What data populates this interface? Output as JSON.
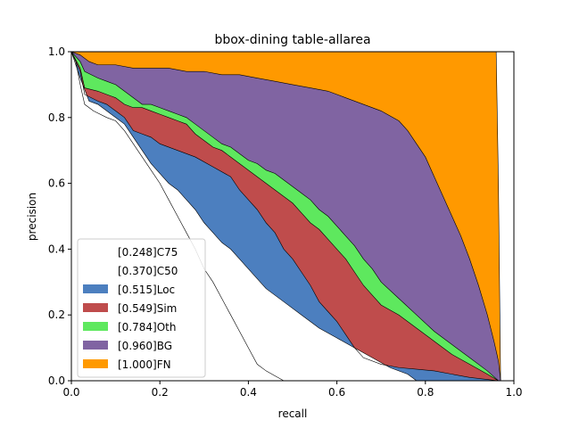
{
  "chart_data": {
    "type": "area",
    "title": "bbox-dining table-allarea",
    "xlabel": "recall",
    "ylabel": "precision",
    "xlim": [
      0,
      1
    ],
    "ylim": [
      0,
      1
    ],
    "x_ticks": [
      "0.0",
      "0.2",
      "0.4",
      "0.6",
      "0.8",
      "1.0"
    ],
    "y_ticks": [
      "0.0",
      "0.2",
      "0.4",
      "0.6",
      "0.8",
      "1.0"
    ],
    "grid": false,
    "legend_position": "lower-left",
    "series": [
      {
        "name": "[0.248]C75",
        "color": "#ffffff",
        "points": [
          [
            0,
            1.0
          ],
          [
            0.01,
            0.97
          ],
          [
            0.02,
            0.9
          ],
          [
            0.03,
            0.84
          ],
          [
            0.05,
            0.82
          ],
          [
            0.08,
            0.8
          ],
          [
            0.1,
            0.79
          ],
          [
            0.12,
            0.76
          ],
          [
            0.14,
            0.72
          ],
          [
            0.16,
            0.68
          ],
          [
            0.18,
            0.64
          ],
          [
            0.2,
            0.6
          ],
          [
            0.22,
            0.55
          ],
          [
            0.24,
            0.5
          ],
          [
            0.26,
            0.45
          ],
          [
            0.28,
            0.4
          ],
          [
            0.3,
            0.34
          ],
          [
            0.32,
            0.3
          ],
          [
            0.34,
            0.25
          ],
          [
            0.36,
            0.2
          ],
          [
            0.38,
            0.15
          ],
          [
            0.4,
            0.1
          ],
          [
            0.42,
            0.05
          ],
          [
            0.44,
            0.03
          ],
          [
            0.46,
            0.015
          ],
          [
            0.48,
            0.0
          ]
        ]
      },
      {
        "name": "[0.370]C50",
        "color": "#ffffff",
        "points": [
          [
            0,
            1.0
          ],
          [
            0.02,
            0.92
          ],
          [
            0.04,
            0.85
          ],
          [
            0.06,
            0.84
          ],
          [
            0.08,
            0.82
          ],
          [
            0.1,
            0.8
          ],
          [
            0.12,
            0.78
          ],
          [
            0.14,
            0.74
          ],
          [
            0.16,
            0.7
          ],
          [
            0.18,
            0.66
          ],
          [
            0.2,
            0.63
          ],
          [
            0.22,
            0.6
          ],
          [
            0.24,
            0.58
          ],
          [
            0.26,
            0.55
          ],
          [
            0.28,
            0.52
          ],
          [
            0.3,
            0.48
          ],
          [
            0.32,
            0.45
          ],
          [
            0.34,
            0.42
          ],
          [
            0.36,
            0.4
          ],
          [
            0.38,
            0.37
          ],
          [
            0.4,
            0.34
          ],
          [
            0.44,
            0.28
          ],
          [
            0.48,
            0.24
          ],
          [
            0.52,
            0.2
          ],
          [
            0.56,
            0.16
          ],
          [
            0.6,
            0.13
          ],
          [
            0.64,
            0.1
          ],
          [
            0.68,
            0.07
          ],
          [
            0.72,
            0.04
          ],
          [
            0.76,
            0.02
          ],
          [
            0.78,
            0.0
          ]
        ]
      },
      {
        "name": "[0.515]Loc",
        "color": "#4c7fbf",
        "points": [
          [
            0,
            1.0
          ],
          [
            0.02,
            0.94
          ],
          [
            0.03,
            0.87
          ],
          [
            0.06,
            0.85
          ],
          [
            0.08,
            0.84
          ],
          [
            0.1,
            0.82
          ],
          [
            0.12,
            0.8
          ],
          [
            0.14,
            0.76
          ],
          [
            0.16,
            0.75
          ],
          [
            0.18,
            0.74
          ],
          [
            0.2,
            0.72
          ],
          [
            0.24,
            0.7
          ],
          [
            0.28,
            0.68
          ],
          [
            0.32,
            0.65
          ],
          [
            0.36,
            0.62
          ],
          [
            0.38,
            0.58
          ],
          [
            0.4,
            0.55
          ],
          [
            0.42,
            0.52
          ],
          [
            0.44,
            0.48
          ],
          [
            0.46,
            0.45
          ],
          [
            0.48,
            0.4
          ],
          [
            0.5,
            0.37
          ],
          [
            0.52,
            0.33
          ],
          [
            0.54,
            0.29
          ],
          [
            0.56,
            0.24
          ],
          [
            0.58,
            0.21
          ],
          [
            0.6,
            0.18
          ],
          [
            0.62,
            0.14
          ],
          [
            0.64,
            0.1
          ],
          [
            0.66,
            0.07
          ],
          [
            0.7,
            0.05
          ],
          [
            0.74,
            0.04
          ],
          [
            0.78,
            0.035
          ],
          [
            0.82,
            0.03
          ],
          [
            0.86,
            0.02
          ],
          [
            0.9,
            0.01
          ],
          [
            0.94,
            0.004
          ],
          [
            0.965,
            0.0
          ]
        ]
      },
      {
        "name": "[0.549]Sim",
        "color": "#bf4c4c",
        "points": [
          [
            0,
            1.0
          ],
          [
            0.02,
            0.95
          ],
          [
            0.03,
            0.89
          ],
          [
            0.06,
            0.88
          ],
          [
            0.08,
            0.87
          ],
          [
            0.1,
            0.86
          ],
          [
            0.12,
            0.84
          ],
          [
            0.14,
            0.83
          ],
          [
            0.16,
            0.83
          ],
          [
            0.18,
            0.82
          ],
          [
            0.2,
            0.81
          ],
          [
            0.22,
            0.8
          ],
          [
            0.24,
            0.79
          ],
          [
            0.26,
            0.78
          ],
          [
            0.28,
            0.75
          ],
          [
            0.3,
            0.73
          ],
          [
            0.32,
            0.71
          ],
          [
            0.34,
            0.7
          ],
          [
            0.36,
            0.68
          ],
          [
            0.38,
            0.66
          ],
          [
            0.4,
            0.64
          ],
          [
            0.42,
            0.62
          ],
          [
            0.44,
            0.6
          ],
          [
            0.46,
            0.58
          ],
          [
            0.48,
            0.56
          ],
          [
            0.5,
            0.54
          ],
          [
            0.52,
            0.51
          ],
          [
            0.54,
            0.48
          ],
          [
            0.56,
            0.46
          ],
          [
            0.58,
            0.43
          ],
          [
            0.6,
            0.4
          ],
          [
            0.62,
            0.37
          ],
          [
            0.64,
            0.33
          ],
          [
            0.66,
            0.29
          ],
          [
            0.68,
            0.26
          ],
          [
            0.7,
            0.23
          ],
          [
            0.74,
            0.2
          ],
          [
            0.78,
            0.16
          ],
          [
            0.82,
            0.12
          ],
          [
            0.86,
            0.08
          ],
          [
            0.9,
            0.05
          ],
          [
            0.94,
            0.02
          ],
          [
            0.965,
            0.0
          ]
        ]
      },
      {
        "name": "[0.784]Oth",
        "color": "#5ee85e",
        "points": [
          [
            0,
            1.0
          ],
          [
            0.02,
            0.97
          ],
          [
            0.03,
            0.94
          ],
          [
            0.06,
            0.92
          ],
          [
            0.08,
            0.91
          ],
          [
            0.1,
            0.9
          ],
          [
            0.12,
            0.88
          ],
          [
            0.14,
            0.86
          ],
          [
            0.16,
            0.84
          ],
          [
            0.18,
            0.84
          ],
          [
            0.2,
            0.83
          ],
          [
            0.22,
            0.82
          ],
          [
            0.24,
            0.81
          ],
          [
            0.26,
            0.8
          ],
          [
            0.28,
            0.78
          ],
          [
            0.3,
            0.76
          ],
          [
            0.32,
            0.74
          ],
          [
            0.34,
            0.72
          ],
          [
            0.36,
            0.71
          ],
          [
            0.38,
            0.69
          ],
          [
            0.4,
            0.67
          ],
          [
            0.42,
            0.66
          ],
          [
            0.44,
            0.64
          ],
          [
            0.46,
            0.63
          ],
          [
            0.48,
            0.61
          ],
          [
            0.5,
            0.59
          ],
          [
            0.52,
            0.57
          ],
          [
            0.54,
            0.55
          ],
          [
            0.56,
            0.52
          ],
          [
            0.58,
            0.5
          ],
          [
            0.6,
            0.47
          ],
          [
            0.62,
            0.44
          ],
          [
            0.64,
            0.41
          ],
          [
            0.66,
            0.37
          ],
          [
            0.68,
            0.34
          ],
          [
            0.7,
            0.3
          ],
          [
            0.74,
            0.25
          ],
          [
            0.78,
            0.2
          ],
          [
            0.82,
            0.15
          ],
          [
            0.86,
            0.11
          ],
          [
            0.9,
            0.07
          ],
          [
            0.94,
            0.03
          ],
          [
            0.965,
            0.0
          ]
        ]
      },
      {
        "name": "[0.960]BG",
        "color": "#8064a2",
        "points": [
          [
            0,
            1.0
          ],
          [
            0.02,
            0.99
          ],
          [
            0.04,
            0.97
          ],
          [
            0.06,
            0.96
          ],
          [
            0.08,
            0.96
          ],
          [
            0.1,
            0.96
          ],
          [
            0.14,
            0.95
          ],
          [
            0.18,
            0.95
          ],
          [
            0.22,
            0.95
          ],
          [
            0.26,
            0.94
          ],
          [
            0.3,
            0.94
          ],
          [
            0.34,
            0.93
          ],
          [
            0.38,
            0.93
          ],
          [
            0.42,
            0.92
          ],
          [
            0.46,
            0.91
          ],
          [
            0.5,
            0.9
          ],
          [
            0.54,
            0.89
          ],
          [
            0.58,
            0.88
          ],
          [
            0.62,
            0.86
          ],
          [
            0.66,
            0.84
          ],
          [
            0.7,
            0.82
          ],
          [
            0.74,
            0.79
          ],
          [
            0.76,
            0.76
          ],
          [
            0.78,
            0.72
          ],
          [
            0.8,
            0.68
          ],
          [
            0.82,
            0.62
          ],
          [
            0.84,
            0.56
          ],
          [
            0.86,
            0.5
          ],
          [
            0.88,
            0.44
          ],
          [
            0.9,
            0.37
          ],
          [
            0.92,
            0.29
          ],
          [
            0.94,
            0.2
          ],
          [
            0.955,
            0.12
          ],
          [
            0.965,
            0.06
          ],
          [
            0.97,
            0.0
          ]
        ]
      },
      {
        "name": "[1.000]FN",
        "color": "#ff9900",
        "points": [
          [
            0,
            1.0
          ],
          [
            0.96,
            1.0
          ],
          [
            0.965,
            0.6
          ],
          [
            0.97,
            0.0
          ],
          [
            1.0,
            0.0
          ]
        ]
      }
    ]
  }
}
